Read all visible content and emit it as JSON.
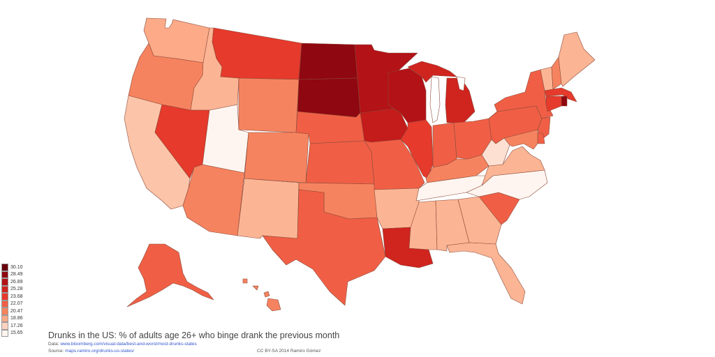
{
  "title": "Drunks in the US: % of adults age 26+ who binge drank the previous month",
  "credits": {
    "data_prefix": "Data: ",
    "data_link": "www.bloomberg.com/visual-data/best-and-worst/most-drunks-states",
    "source_prefix": "Source: ",
    "source_link": "maps.ramiro.org/drunks-us-states/",
    "license": "CC BY-SA 2014 Ramiro Gómez"
  },
  "legend": [
    {
      "label": "30.10",
      "color": "#67000d"
    },
    {
      "label": "28.49",
      "color": "#8f0710"
    },
    {
      "label": "26.89",
      "color": "#b31217"
    },
    {
      "label": "25.28",
      "color": "#d0241f"
    },
    {
      "label": "23.68",
      "color": "#e53a2c"
    },
    {
      "label": "22.07",
      "color": "#f05f45"
    },
    {
      "label": "20.47",
      "color": "#f6835f"
    },
    {
      "label": "18.86",
      "color": "#fcaa88"
    },
    {
      "label": "17.26",
      "color": "#fdd3bf"
    },
    {
      "label": "15.65",
      "color": "#fff5f0"
    }
  ],
  "states": [
    {
      "id": "WA",
      "fill": "#fcaa88"
    },
    {
      "id": "OR",
      "fill": "#f6835f"
    },
    {
      "id": "CA",
      "fill": "#fcc4a8"
    },
    {
      "id": "ID",
      "fill": "#fcb594"
    },
    {
      "id": "NV",
      "fill": "#e53a2c"
    },
    {
      "id": "UT",
      "fill": "#fff5f0"
    },
    {
      "id": "AZ",
      "fill": "#f6835f"
    },
    {
      "id": "MT",
      "fill": "#e53a2c"
    },
    {
      "id": "WY",
      "fill": "#f6835f"
    },
    {
      "id": "CO",
      "fill": "#f6835f"
    },
    {
      "id": "NM",
      "fill": "#fcb594"
    },
    {
      "id": "ND",
      "fill": "#8f0710"
    },
    {
      "id": "SD",
      "fill": "#8f0710"
    },
    {
      "id": "NE",
      "fill": "#f05f45"
    },
    {
      "id": "KS",
      "fill": "#f05f45"
    },
    {
      "id": "OK",
      "fill": "#f6835f"
    },
    {
      "id": "TX",
      "fill": "#f05f45"
    },
    {
      "id": "MN",
      "fill": "#b31217"
    },
    {
      "id": "IA",
      "fill": "#c41b1b"
    },
    {
      "id": "MO",
      "fill": "#f05f45"
    },
    {
      "id": "AR",
      "fill": "#fcb594"
    },
    {
      "id": "LA",
      "fill": "#d0241f"
    },
    {
      "id": "WI",
      "fill": "#b31217"
    },
    {
      "id": "IL",
      "fill": "#e53a2c"
    },
    {
      "id": "MI",
      "fill": "#d0241f"
    },
    {
      "id": "IN",
      "fill": "#f05f45"
    },
    {
      "id": "OH",
      "fill": "#f05f45"
    },
    {
      "id": "KY",
      "fill": "#f6835f"
    },
    {
      "id": "TN",
      "fill": "#fff5f0"
    },
    {
      "id": "MS",
      "fill": "#fcb594"
    },
    {
      "id": "AL",
      "fill": "#fcb594"
    },
    {
      "id": "GA",
      "fill": "#fcb594"
    },
    {
      "id": "FL",
      "fill": "#fcb594"
    },
    {
      "id": "SC",
      "fill": "#f05f45"
    },
    {
      "id": "NC",
      "fill": "#fff5f0"
    },
    {
      "id": "VA",
      "fill": "#fcb594"
    },
    {
      "id": "WV",
      "fill": "#fde0d2"
    },
    {
      "id": "PA",
      "fill": "#f05f45"
    },
    {
      "id": "NY",
      "fill": "#f05f45"
    },
    {
      "id": "VT",
      "fill": "#fcb594"
    },
    {
      "id": "NH",
      "fill": "#f6835f"
    },
    {
      "id": "ME",
      "fill": "#fcb594"
    },
    {
      "id": "MA",
      "fill": "#e53a2c"
    },
    {
      "id": "RI",
      "fill": "#8f0710"
    },
    {
      "id": "CT",
      "fill": "#e53a2c"
    },
    {
      "id": "NJ",
      "fill": "#f05f45"
    },
    {
      "id": "DE",
      "fill": "#f05f45"
    },
    {
      "id": "MD",
      "fill": "#f6835f"
    },
    {
      "id": "AK",
      "fill": "#f05f45"
    },
    {
      "id": "HI",
      "fill": "#f6835f"
    }
  ]
}
